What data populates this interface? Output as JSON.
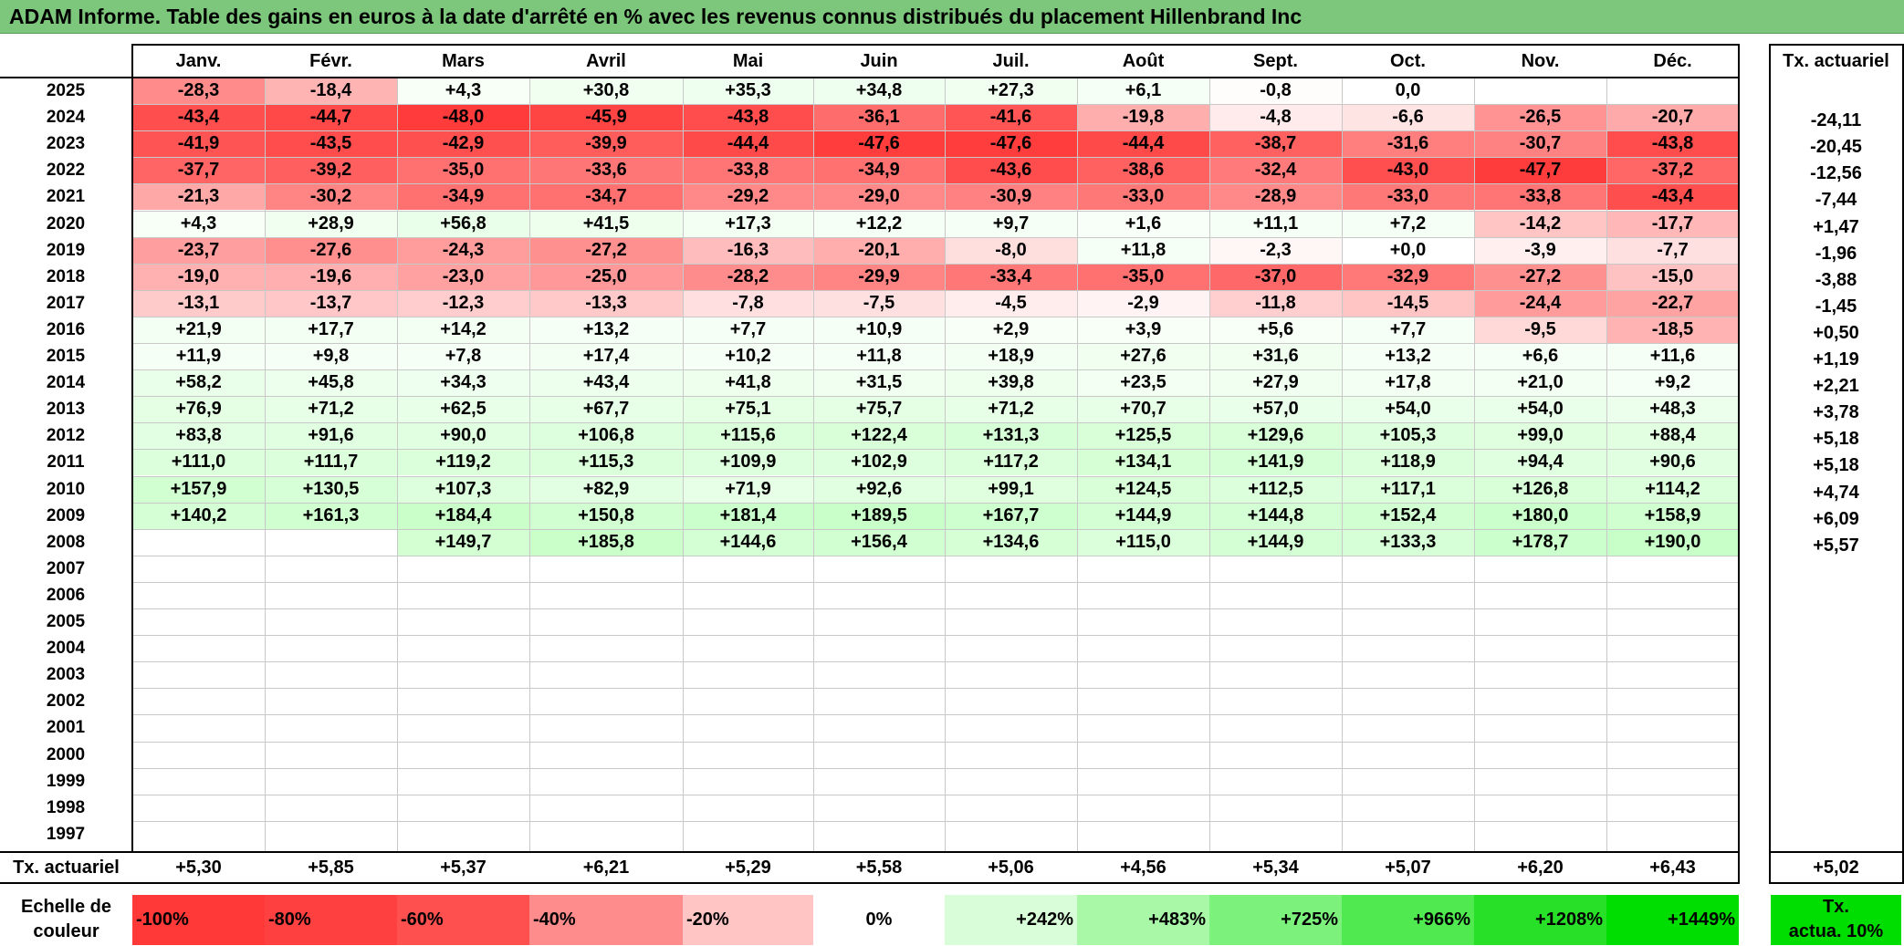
{
  "title": "ADAM Informe. Table des gains en euros à la date d'arrêté en % avec les revenus connus distribués du placement Hillenbrand Inc",
  "months": [
    "Janv.",
    "Févr.",
    "Mars",
    "Avril",
    "Mai",
    "Juin",
    "Juil.",
    "Août",
    "Sept.",
    "Oct.",
    "Nov.",
    "Déc."
  ],
  "annual_header": "Tx. actuariel",
  "rows": [
    {
      "year": "2025",
      "values": [
        "-28,3",
        "-18,4",
        "+4,3",
        "+30,8",
        "+35,3",
        "+34,8",
        "+27,3",
        "+6,1",
        "-0,8",
        "0,0",
        "",
        ""
      ],
      "annual": ""
    },
    {
      "year": "2024",
      "values": [
        "-43,4",
        "-44,7",
        "-48,0",
        "-45,9",
        "-43,8",
        "-36,1",
        "-41,6",
        "-19,8",
        "-4,8",
        "-6,6",
        "-26,5",
        "-20,7"
      ],
      "annual": "-24,11"
    },
    {
      "year": "2023",
      "values": [
        "-41,9",
        "-43,5",
        "-42,9",
        "-39,9",
        "-44,4",
        "-47,6",
        "-47,6",
        "-44,4",
        "-38,7",
        "-31,6",
        "-30,7",
        "-43,8"
      ],
      "annual": "-20,45"
    },
    {
      "year": "2022",
      "values": [
        "-37,7",
        "-39,2",
        "-35,0",
        "-33,6",
        "-33,8",
        "-34,9",
        "-43,6",
        "-38,6",
        "-32,4",
        "-43,0",
        "-47,7",
        "-37,2"
      ],
      "annual": "-12,56"
    },
    {
      "year": "2021",
      "values": [
        "-21,3",
        "-30,2",
        "-34,9",
        "-34,7",
        "-29,2",
        "-29,0",
        "-30,9",
        "-33,0",
        "-28,9",
        "-33,0",
        "-33,8",
        "-43,4"
      ],
      "annual": "-7,44"
    },
    {
      "year": "2020",
      "values": [
        "+4,3",
        "+28,9",
        "+56,8",
        "+41,5",
        "+17,3",
        "+12,2",
        "+9,7",
        "+1,6",
        "+11,1",
        "+7,2",
        "-14,2",
        "-17,7"
      ],
      "annual": "+1,47"
    },
    {
      "year": "2019",
      "values": [
        "-23,7",
        "-27,6",
        "-24,3",
        "-27,2",
        "-16,3",
        "-20,1",
        "-8,0",
        "+11,8",
        "-2,3",
        "+0,0",
        "-3,9",
        "-7,7"
      ],
      "annual": "-1,96"
    },
    {
      "year": "2018",
      "values": [
        "-19,0",
        "-19,6",
        "-23,0",
        "-25,0",
        "-28,2",
        "-29,9",
        "-33,4",
        "-35,0",
        "-37,0",
        "-32,9",
        "-27,2",
        "-15,0"
      ],
      "annual": "-3,88"
    },
    {
      "year": "2017",
      "values": [
        "-13,1",
        "-13,7",
        "-12,3",
        "-13,3",
        "-7,8",
        "-7,5",
        "-4,5",
        "-2,9",
        "-11,8",
        "-14,5",
        "-24,4",
        "-22,7"
      ],
      "annual": "-1,45"
    },
    {
      "year": "2016",
      "values": [
        "+21,9",
        "+17,7",
        "+14,2",
        "+13,2",
        "+7,7",
        "+10,9",
        "+2,9",
        "+3,9",
        "+5,6",
        "+7,7",
        "-9,5",
        "-18,5"
      ],
      "annual": "+0,50"
    },
    {
      "year": "2015",
      "values": [
        "+11,9",
        "+9,8",
        "+7,8",
        "+17,4",
        "+10,2",
        "+11,8",
        "+18,9",
        "+27,6",
        "+31,6",
        "+13,2",
        "+6,6",
        "+11,6"
      ],
      "annual": "+1,19"
    },
    {
      "year": "2014",
      "values": [
        "+58,2",
        "+45,8",
        "+34,3",
        "+43,4",
        "+41,8",
        "+31,5",
        "+39,8",
        "+23,5",
        "+27,9",
        "+17,8",
        "+21,0",
        "+9,2"
      ],
      "annual": "+2,21"
    },
    {
      "year": "2013",
      "values": [
        "+76,9",
        "+71,2",
        "+62,5",
        "+67,7",
        "+75,1",
        "+75,7",
        "+71,2",
        "+70,7",
        "+57,0",
        "+54,0",
        "+54,0",
        "+48,3"
      ],
      "annual": "+3,78"
    },
    {
      "year": "2012",
      "values": [
        "+83,8",
        "+91,6",
        "+90,0",
        "+106,8",
        "+115,6",
        "+122,4",
        "+131,3",
        "+125,5",
        "+129,6",
        "+105,3",
        "+99,0",
        "+88,4"
      ],
      "annual": "+5,18"
    },
    {
      "year": "2011",
      "values": [
        "+111,0",
        "+111,7",
        "+119,2",
        "+115,3",
        "+109,9",
        "+102,9",
        "+117,2",
        "+134,1",
        "+141,9",
        "+118,9",
        "+94,4",
        "+90,6"
      ],
      "annual": "+5,18"
    },
    {
      "year": "2010",
      "values": [
        "+157,9",
        "+130,5",
        "+107,3",
        "+82,9",
        "+71,9",
        "+92,6",
        "+99,1",
        "+124,5",
        "+112,5",
        "+117,1",
        "+126,8",
        "+114,2"
      ],
      "annual": "+4,74"
    },
    {
      "year": "2009",
      "values": [
        "+140,2",
        "+161,3",
        "+184,4",
        "+150,8",
        "+181,4",
        "+189,5",
        "+167,7",
        "+144,9",
        "+144,8",
        "+152,4",
        "+180,0",
        "+158,9"
      ],
      "annual": "+6,09"
    },
    {
      "year": "2008",
      "values": [
        "",
        "",
        "+149,7",
        "+185,8",
        "+144,6",
        "+156,4",
        "+134,6",
        "+115,0",
        "+144,9",
        "+133,3",
        "+178,7",
        "+190,0"
      ],
      "annual": "+5,57"
    },
    {
      "year": "2007",
      "values": [
        "",
        "",
        "",
        "",
        "",
        "",
        "",
        "",
        "",
        "",
        "",
        ""
      ],
      "annual": ""
    },
    {
      "year": "2006",
      "values": [
        "",
        "",
        "",
        "",
        "",
        "",
        "",
        "",
        "",
        "",
        "",
        ""
      ],
      "annual": ""
    },
    {
      "year": "2005",
      "values": [
        "",
        "",
        "",
        "",
        "",
        "",
        "",
        "",
        "",
        "",
        "",
        ""
      ],
      "annual": ""
    },
    {
      "year": "2004",
      "values": [
        "",
        "",
        "",
        "",
        "",
        "",
        "",
        "",
        "",
        "",
        "",
        ""
      ],
      "annual": ""
    },
    {
      "year": "2003",
      "values": [
        "",
        "",
        "",
        "",
        "",
        "",
        "",
        "",
        "",
        "",
        "",
        ""
      ],
      "annual": ""
    },
    {
      "year": "2002",
      "values": [
        "",
        "",
        "",
        "",
        "",
        "",
        "",
        "",
        "",
        "",
        "",
        ""
      ],
      "annual": ""
    },
    {
      "year": "2001",
      "values": [
        "",
        "",
        "",
        "",
        "",
        "",
        "",
        "",
        "",
        "",
        "",
        ""
      ],
      "annual": ""
    },
    {
      "year": "2000",
      "values": [
        "",
        "",
        "",
        "",
        "",
        "",
        "",
        "",
        "",
        "",
        "",
        ""
      ],
      "annual": ""
    },
    {
      "year": "1999",
      "values": [
        "",
        "",
        "",
        "",
        "",
        "",
        "",
        "",
        "",
        "",
        "",
        ""
      ],
      "annual": ""
    },
    {
      "year": "1998",
      "values": [
        "",
        "",
        "",
        "",
        "",
        "",
        "",
        "",
        "",
        "",
        "",
        ""
      ],
      "annual": ""
    },
    {
      "year": "1997",
      "values": [
        "",
        "",
        "",
        "",
        "",
        "",
        "",
        "",
        "",
        "",
        "",
        ""
      ],
      "annual": ""
    }
  ],
  "footer": {
    "label": "Tx. actuariel",
    "values": [
      "+5,30",
      "+5,85",
      "+5,37",
      "+6,21",
      "+5,29",
      "+5,58",
      "+5,06",
      "+4,56",
      "+5,34",
      "+5,07",
      "+6,20",
      "+6,43"
    ],
    "annual": "+5,02"
  },
  "scale": {
    "label_line1": "Echelle de",
    "label_line2": "couleur",
    "steps": [
      "-100%",
      "-80%",
      "-60%",
      "-40%",
      "-20%",
      "0%",
      "+242%",
      "+483%",
      "+725%",
      "+966%",
      "+1208%",
      "+1449%"
    ],
    "annual_line1": "Tx.",
    "annual_line2": "actua. 10%"
  },
  "colors": {
    "title_bg": "#7cc77c",
    "negative": "#ff3b3b",
    "positive": "#00e000",
    "scale_colors": [
      "#ff3838",
      "#ff4040",
      "#ff5050",
      "#ff8c8c",
      "#ffc4c4",
      "#ffffff",
      "#d8fdd8",
      "#a8f8a8",
      "#7cf27c",
      "#50ea50",
      "#28e028",
      "#00dd00"
    ],
    "annual_scale_bg": "#00dd00"
  }
}
